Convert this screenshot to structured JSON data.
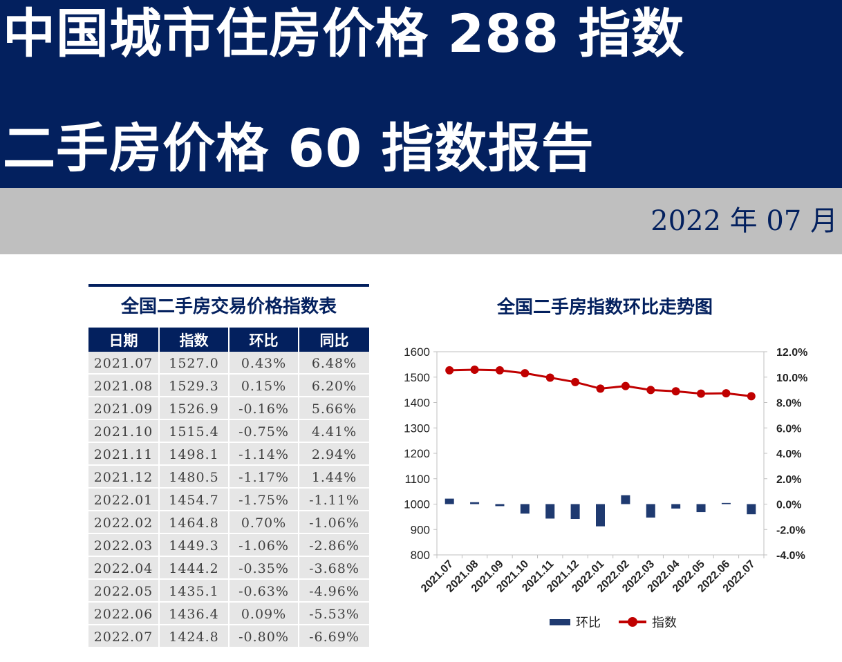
{
  "header": {
    "title_line1": "中国城市住房价格 288 指数",
    "title_line2": "二手房价格 60 指数报告",
    "date": "2022 年 07 月"
  },
  "table": {
    "title": "全国二手房交易价格指数表",
    "columns": [
      "日期",
      "指数",
      "环比",
      "同比"
    ],
    "rows": [
      [
        "2021.07",
        "1527.0",
        "0.43%",
        "6.48%"
      ],
      [
        "2021.08",
        "1529.3",
        "0.15%",
        "6.20%"
      ],
      [
        "2021.09",
        "1526.9",
        "-0.16%",
        "5.66%"
      ],
      [
        "2021.10",
        "1515.4",
        "-0.75%",
        "4.41%"
      ],
      [
        "2021.11",
        "1498.1",
        "-1.14%",
        "2.94%"
      ],
      [
        "2021.12",
        "1480.5",
        "-1.17%",
        "1.44%"
      ],
      [
        "2022.01",
        "1454.7",
        "-1.75%",
        "-1.11%"
      ],
      [
        "2022.02",
        "1464.8",
        "0.70%",
        "-1.06%"
      ],
      [
        "2022.03",
        "1449.3",
        "-1.06%",
        "-2.86%"
      ],
      [
        "2022.04",
        "1444.2",
        "-0.35%",
        "-3.68%"
      ],
      [
        "2022.05",
        "1435.1",
        "-0.63%",
        "-4.96%"
      ],
      [
        "2022.06",
        "1436.4",
        "0.09%",
        "-5.53%"
      ],
      [
        "2022.07",
        "1424.8",
        "-0.80%",
        "-6.69%"
      ]
    ]
  },
  "chart_data": {
    "type": "bar+line",
    "title": "全国二手房指数环比走势图",
    "categories": [
      "2021.07",
      "2021.08",
      "2021.09",
      "2021.10",
      "2021.11",
      "2021.12",
      "2022.01",
      "2022.02",
      "2022.03",
      "2022.04",
      "2022.05",
      "2022.06",
      "2022.07"
    ],
    "series": [
      {
        "name": "环比",
        "type": "bar",
        "axis": "right",
        "unit": "%",
        "values": [
          0.43,
          0.15,
          -0.16,
          -0.75,
          -1.14,
          -1.17,
          -1.75,
          0.7,
          -1.06,
          -0.35,
          -0.63,
          0.09,
          -0.8
        ]
      },
      {
        "name": "指数",
        "type": "line",
        "axis": "left",
        "values": [
          1527.0,
          1529.3,
          1526.9,
          1515.4,
          1498.1,
          1480.5,
          1454.7,
          1464.8,
          1449.3,
          1444.2,
          1435.1,
          1436.4,
          1424.8
        ]
      }
    ],
    "left_axis": {
      "ylim": [
        800,
        1600
      ],
      "ticks": [
        "1600",
        "1500",
        "1400",
        "1300",
        "1200",
        "1100",
        "1000",
        "900",
        "800"
      ]
    },
    "right_axis": {
      "ylim": [
        -4.0,
        12.0
      ],
      "ticks": [
        "12.0%",
        "10.0%",
        "8.0%",
        "6.0%",
        "4.0%",
        "2.0%",
        "0.0%",
        "-2.0%",
        "-4.0%"
      ]
    },
    "legend": [
      "环比",
      "指数"
    ],
    "legend_position": "bottom",
    "colors": {
      "bar": "#1f3a70",
      "line": "#c00000"
    },
    "grid": false
  }
}
